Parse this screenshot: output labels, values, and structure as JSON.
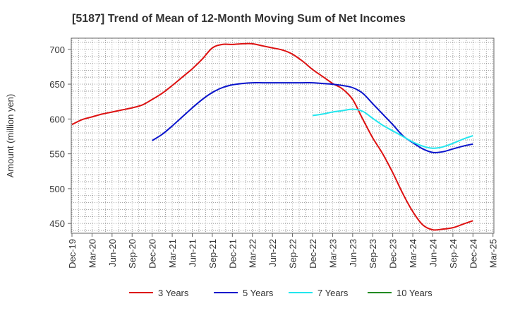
{
  "chart_data": {
    "type": "line",
    "title": "[5187]  Trend of Mean of 12-Month Moving Sum of Net Incomes",
    "ylabel": "Amount (million yen)",
    "xlabel": "",
    "ylim": [
      436,
      716
    ],
    "yticks": [
      450,
      500,
      550,
      600,
      650,
      700
    ],
    "x_tick_labels": [
      "Dec-19",
      "Mar-20",
      "Jun-20",
      "Sep-20",
      "Dec-20",
      "Mar-21",
      "Jun-21",
      "Sep-21",
      "Dec-21",
      "Mar-22",
      "Jun-22",
      "Sep-22",
      "Dec-22",
      "Mar-23",
      "Jun-23",
      "Sep-23",
      "Dec-23",
      "Mar-24",
      "Jun-24",
      "Sep-24",
      "Dec-24",
      "Mar-25"
    ],
    "grid": true,
    "legend_position": "bottom",
    "series": [
      {
        "name": "3 Years",
        "color": "#dd1111",
        "x_index": [
          0,
          0.5,
          1,
          1.5,
          2,
          2.5,
          3,
          3.5,
          4,
          4.5,
          5,
          5.5,
          6,
          6.5,
          7,
          7.5,
          8,
          8.5,
          9,
          9.5,
          10,
          10.5,
          11,
          11.5,
          12,
          12.5,
          13,
          13.5,
          14,
          14.5,
          15,
          15.5,
          16,
          16.5,
          17,
          17.5,
          18,
          18.5,
          19,
          19.5,
          20
        ],
        "values": [
          592,
          599,
          603,
          607,
          610,
          613,
          616,
          620,
          628,
          637,
          648,
          660,
          672,
          686,
          702,
          707,
          707,
          708,
          708,
          705,
          702,
          699,
          693,
          683,
          671,
          661,
          651,
          643,
          628,
          600,
          573,
          550,
          523,
          493,
          467,
          448,
          441,
          442,
          444,
          449,
          454
        ]
      },
      {
        "name": "5 Years",
        "color": "#0a14cc",
        "x_index": [
          4,
          4.5,
          5,
          5.5,
          6,
          6.5,
          7,
          7.5,
          8,
          8.5,
          9,
          9.5,
          10,
          10.5,
          11,
          11.5,
          12,
          12.5,
          13,
          13.5,
          14,
          14.5,
          15,
          15.5,
          16,
          16.5,
          17,
          17.5,
          18,
          18.5,
          19,
          19.5,
          20
        ],
        "values": [
          569,
          578,
          590,
          603,
          616,
          628,
          638,
          645,
          649,
          651,
          652,
          652,
          652,
          652,
          652,
          652,
          652,
          651,
          650,
          648,
          645,
          637,
          622,
          607,
          592,
          576,
          566,
          557,
          552,
          553,
          557,
          561,
          564
        ]
      },
      {
        "name": "7 Years",
        "color": "#22e6ee",
        "x_index": [
          12,
          12.5,
          13,
          13.5,
          14,
          14.5,
          15,
          15.5,
          16,
          16.5,
          17,
          17.5,
          18,
          18.5,
          19,
          19.5,
          20
        ],
        "values": [
          605,
          607,
          610,
          612,
          614,
          611,
          601,
          591,
          583,
          575,
          567,
          561,
          558,
          560,
          565,
          571,
          576
        ]
      },
      {
        "name": "10 Years",
        "color": "#228b22",
        "x_index": [],
        "values": []
      }
    ]
  }
}
